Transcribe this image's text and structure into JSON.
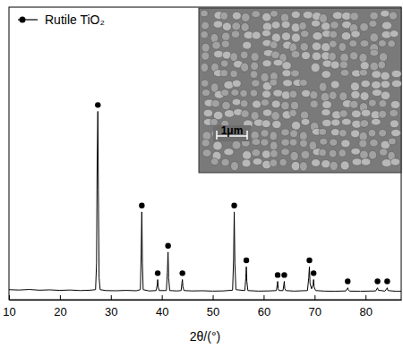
{
  "chart_data": {
    "type": "line",
    "x_label": "2θ/(°)",
    "xlim": [
      10,
      87
    ],
    "xticks": [
      10,
      20,
      30,
      40,
      50,
      60,
      70,
      80
    ],
    "ylim": [
      0,
      160
    ],
    "yticks": [],
    "tick_labels": "x",
    "legend": "upper left",
    "series": [
      {
        "type": "line",
        "color": "#000000",
        "x": [
          10,
          12,
          14,
          16,
          18,
          20,
          22,
          24,
          26,
          27.0,
          27.2,
          27.3,
          27.45,
          27.55,
          27.7,
          27.9,
          29,
          31,
          33,
          35,
          35.8,
          35.95,
          36.08,
          36.2,
          36.35,
          37.5,
          38.9,
          39.1,
          39.2,
          39.3,
          39.5,
          40.9,
          41.1,
          41.23,
          41.35,
          41.55,
          43.0,
          43.8,
          43.95,
          44.05,
          44.15,
          44.35,
          46,
          48,
          50,
          52,
          53.9,
          54.1,
          54.22,
          54.35,
          54.55,
          56.3,
          56.5,
          56.6,
          56.7,
          56.9,
          59,
          61,
          62.5,
          62.65,
          62.75,
          62.85,
          63.0,
          63.8,
          63.95,
          64.05,
          64.15,
          64.35,
          66,
          68.6,
          68.85,
          68.98,
          69.1,
          69.4,
          69.7,
          69.8,
          69.9,
          70.2,
          72,
          74,
          76.1,
          76.4,
          76.5,
          76.6,
          76.9,
          79,
          82.0,
          82.25,
          82.35,
          82.5,
          83.8,
          84.15,
          84.25,
          84.4,
          86,
          87
        ],
        "values": [
          5.5,
          5.3,
          5.6,
          5.2,
          5.4,
          5.1,
          5.3,
          5.0,
          5.2,
          5.5,
          20,
          70,
          103,
          60,
          12,
          5.5,
          5.0,
          4.9,
          5.1,
          4.9,
          5.5,
          25,
          48,
          20,
          5.5,
          4.8,
          5.0,
          8,
          11,
          7,
          5.0,
          5.0,
          15,
          26,
          12,
          5.0,
          4.8,
          5.0,
          9,
          11,
          7,
          5.0,
          4.8,
          4.9,
          4.7,
          4.8,
          5.2,
          22,
          48,
          20,
          5.5,
          5.0,
          12,
          18,
          10,
          5.0,
          4.7,
          4.8,
          5.0,
          8,
          10,
          6,
          5.0,
          5.0,
          8,
          10,
          6,
          5.0,
          4.7,
          5.0,
          12,
          18,
          9,
          6,
          8,
          11,
          7,
          5.0,
          4.7,
          4.6,
          4.8,
          6,
          6.5,
          5.5,
          4.7,
          4.6,
          4.8,
          6,
          6.5,
          5.2,
          4.7,
          6,
          6.5,
          5.0,
          4.6,
          4.6
        ]
      },
      {
        "name": "Rutile TiO₂",
        "type": "scatter",
        "marker": "circle",
        "color": "#000000",
        "x": [
          27.45,
          36.08,
          39.2,
          41.23,
          44.05,
          54.22,
          56.6,
          62.75,
          64.05,
          68.98,
          69.8,
          76.5,
          82.35,
          84.25
        ],
        "values": [
          106.5,
          51.5,
          14.5,
          29.5,
          14.5,
          51.5,
          21.5,
          13.5,
          13.5,
          21.5,
          14.5,
          10,
          10,
          10
        ]
      }
    ],
    "annotations": [
      {
        "text": "1μm"
      }
    ]
  }
}
